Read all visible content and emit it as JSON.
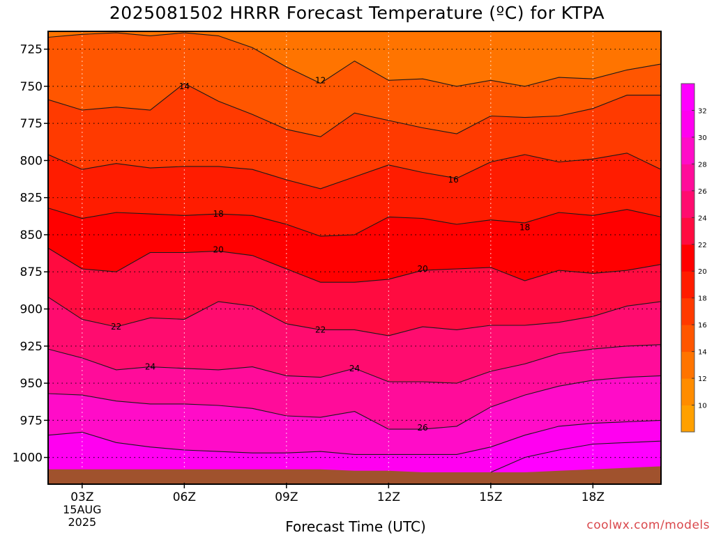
{
  "chart_data": {
    "type": "heatmap",
    "title": "2025081502 HRRR Forecast Temperature (ºC) for KTPA",
    "xlabel": "Forecast Time (UTC)",
    "ylabel": "",
    "x_ticks": [
      {
        "hour": 3,
        "label": "03Z"
      },
      {
        "hour": 6,
        "label": "06Z"
      },
      {
        "hour": 9,
        "label": "09Z"
      },
      {
        "hour": 12,
        "label": "12Z"
      },
      {
        "hour": 15,
        "label": "15Z"
      },
      {
        "hour": 18,
        "label": "18Z"
      }
    ],
    "date_labels": [
      "15AUG",
      "2025"
    ],
    "x_range_hours": [
      2,
      20
    ],
    "y_ticks": [
      725,
      750,
      775,
      800,
      825,
      850,
      875,
      900,
      925,
      950,
      975,
      1000
    ],
    "y_range_hpa": [
      713,
      1018
    ],
    "y_inverted": true,
    "grid": true,
    "colorbar_ticks": [
      10,
      12,
      14,
      16,
      18,
      20,
      22,
      24,
      26,
      28,
      30,
      32
    ],
    "colorbar_colors": [
      "#ffa000",
      "#ff8c00",
      "#ff7400",
      "#ff5600",
      "#ff3a00",
      "#ff1c00",
      "#ff0000",
      "#ff0b40",
      "#ff0c6f",
      "#ff0c9a",
      "#ff0cc8",
      "#ff00f0",
      "#ff00ff"
    ],
    "ground_color": "#a0522d",
    "contours": [
      {
        "level": 12,
        "points": [
          [
            2,
            717
          ],
          [
            3,
            715
          ],
          [
            4,
            714
          ],
          [
            5,
            716
          ],
          [
            6,
            714
          ],
          [
            7,
            716
          ],
          [
            8,
            724
          ],
          [
            9,
            737
          ],
          [
            10,
            748
          ],
          [
            11,
            733
          ],
          [
            12,
            746
          ],
          [
            13,
            745
          ],
          [
            14,
            750
          ],
          [
            15,
            746
          ],
          [
            16,
            750
          ],
          [
            17,
            744
          ],
          [
            18,
            745
          ],
          [
            19,
            739
          ],
          [
            20,
            735
          ]
        ]
      },
      {
        "level": 14,
        "points": [
          [
            2,
            759
          ],
          [
            3,
            766
          ],
          [
            4,
            764
          ],
          [
            5,
            766
          ],
          [
            6,
            748
          ],
          [
            7,
            760
          ],
          [
            8,
            769
          ],
          [
            9,
            779
          ],
          [
            10,
            784
          ],
          [
            11,
            768
          ],
          [
            12,
            773
          ],
          [
            13,
            778
          ],
          [
            14,
            782
          ],
          [
            15,
            770
          ],
          [
            16,
            771
          ],
          [
            17,
            770
          ],
          [
            18,
            765
          ],
          [
            19,
            756
          ],
          [
            20,
            756
          ]
        ]
      },
      {
        "level": 16,
        "points": [
          [
            2,
            796
          ],
          [
            3,
            806
          ],
          [
            4,
            802
          ],
          [
            5,
            805
          ],
          [
            6,
            804
          ],
          [
            7,
            804
          ],
          [
            8,
            806
          ],
          [
            9,
            813
          ],
          [
            10,
            819
          ],
          [
            11,
            811
          ],
          [
            12,
            803
          ],
          [
            13,
            808
          ],
          [
            14,
            812
          ],
          [
            15,
            801
          ],
          [
            16,
            796
          ],
          [
            17,
            801
          ],
          [
            18,
            799
          ],
          [
            19,
            795
          ],
          [
            20,
            806
          ]
        ]
      },
      {
        "level": 18,
        "points": [
          [
            2,
            832
          ],
          [
            3,
            839
          ],
          [
            4,
            835
          ],
          [
            5,
            836
          ],
          [
            6,
            837
          ],
          [
            7,
            836
          ],
          [
            8,
            837
          ],
          [
            9,
            843
          ],
          [
            10,
            851
          ],
          [
            11,
            850
          ],
          [
            12,
            838
          ],
          [
            13,
            839
          ],
          [
            14,
            843
          ],
          [
            15,
            840
          ],
          [
            16,
            842
          ],
          [
            17,
            835
          ],
          [
            18,
            837
          ],
          [
            19,
            833
          ],
          [
            20,
            838
          ]
        ]
      },
      {
        "level": 20,
        "points": [
          [
            2,
            859
          ],
          [
            3,
            873
          ],
          [
            4,
            875
          ],
          [
            5,
            862
          ],
          [
            6,
            862
          ],
          [
            7,
            861
          ],
          [
            8,
            864
          ],
          [
            9,
            873
          ],
          [
            10,
            882
          ],
          [
            11,
            882
          ],
          [
            12,
            880
          ],
          [
            13,
            874
          ],
          [
            14,
            873
          ],
          [
            15,
            872
          ],
          [
            16,
            881
          ],
          [
            17,
            874
          ],
          [
            18,
            876
          ],
          [
            19,
            874
          ],
          [
            20,
            870
          ]
        ]
      },
      {
        "level": 22,
        "points": [
          [
            2,
            892
          ],
          [
            3,
            907
          ],
          [
            4,
            912
          ],
          [
            5,
            906
          ],
          [
            6,
            907
          ],
          [
            7,
            895
          ],
          [
            8,
            898
          ],
          [
            9,
            910
          ],
          [
            10,
            914
          ],
          [
            11,
            914
          ],
          [
            12,
            918
          ],
          [
            13,
            912
          ],
          [
            14,
            914
          ],
          [
            15,
            911
          ],
          [
            16,
            911
          ],
          [
            17,
            909
          ],
          [
            18,
            905
          ],
          [
            19,
            898
          ],
          [
            20,
            895
          ]
        ]
      },
      {
        "level": 24,
        "points": [
          [
            2,
            927
          ],
          [
            3,
            933
          ],
          [
            4,
            941
          ],
          [
            5,
            939
          ],
          [
            6,
            940
          ],
          [
            7,
            941
          ],
          [
            8,
            939
          ],
          [
            9,
            945
          ],
          [
            10,
            946
          ],
          [
            11,
            940
          ],
          [
            12,
            949
          ],
          [
            13,
            949
          ],
          [
            14,
            950
          ],
          [
            15,
            942
          ],
          [
            16,
            937
          ],
          [
            17,
            930
          ],
          [
            18,
            927
          ],
          [
            19,
            925
          ],
          [
            20,
            924
          ]
        ]
      },
      {
        "level": 26,
        "points": [
          [
            2,
            957
          ],
          [
            3,
            958
          ],
          [
            4,
            962
          ],
          [
            5,
            964
          ],
          [
            6,
            964
          ],
          [
            7,
            965
          ],
          [
            8,
            967
          ],
          [
            9,
            972
          ],
          [
            10,
            973
          ],
          [
            11,
            969
          ],
          [
            12,
            981
          ],
          [
            13,
            981
          ],
          [
            14,
            979
          ],
          [
            15,
            966
          ],
          [
            16,
            958
          ],
          [
            17,
            952
          ],
          [
            18,
            948
          ],
          [
            19,
            946
          ],
          [
            20,
            945
          ]
        ]
      },
      {
        "level": 28,
        "points": [
          [
            2,
            985
          ],
          [
            3,
            983
          ],
          [
            4,
            990
          ],
          [
            5,
            993
          ],
          [
            6,
            995
          ],
          [
            7,
            996
          ],
          [
            8,
            997
          ],
          [
            9,
            997
          ],
          [
            10,
            996
          ],
          [
            11,
            998
          ],
          [
            12,
            998
          ],
          [
            13,
            998
          ],
          [
            14,
            998
          ],
          [
            15,
            993
          ],
          [
            16,
            985
          ],
          [
            17,
            979
          ],
          [
            18,
            977
          ],
          [
            19,
            976
          ],
          [
            20,
            975
          ]
        ]
      },
      {
        "level": 30,
        "points": [
          [
            15,
            1010
          ],
          [
            16,
            1000
          ],
          [
            17,
            995
          ],
          [
            18,
            991
          ],
          [
            19,
            990
          ],
          [
            20,
            989
          ]
        ]
      }
    ],
    "ground_points": [
      [
        2,
        1008
      ],
      [
        3,
        1008
      ],
      [
        4,
        1008
      ],
      [
        5,
        1008
      ],
      [
        6,
        1008
      ],
      [
        7,
        1008
      ],
      [
        8,
        1008
      ],
      [
        9,
        1008
      ],
      [
        10,
        1008
      ],
      [
        11,
        1009
      ],
      [
        12,
        1009
      ],
      [
        13,
        1010
      ],
      [
        14,
        1010
      ],
      [
        15,
        1010
      ],
      [
        16,
        1010
      ],
      [
        17,
        1009
      ],
      [
        18,
        1008
      ],
      [
        19,
        1007
      ],
      [
        20,
        1006
      ]
    ],
    "contour_labels": [
      {
        "text": "12",
        "hour": 10,
        "hpa": 746
      },
      {
        "text": "14",
        "hour": 6,
        "hpa": 750
      },
      {
        "text": "16",
        "hour": 13.9,
        "hpa": 813
      },
      {
        "text": "18",
        "hour": 7,
        "hpa": 836
      },
      {
        "text": "18",
        "hour": 16,
        "hpa": 845
      },
      {
        "text": "20",
        "hour": 7,
        "hpa": 860
      },
      {
        "text": "20",
        "hour": 13,
        "hpa": 873
      },
      {
        "text": "22",
        "hour": 4,
        "hpa": 912
      },
      {
        "text": "22",
        "hour": 10,
        "hpa": 914
      },
      {
        "text": "24",
        "hour": 5,
        "hpa": 939
      },
      {
        "text": "24",
        "hour": 11,
        "hpa": 940
      },
      {
        "text": "26",
        "hour": 13,
        "hpa": 980
      }
    ]
  },
  "credit": "coolwx.com/models"
}
